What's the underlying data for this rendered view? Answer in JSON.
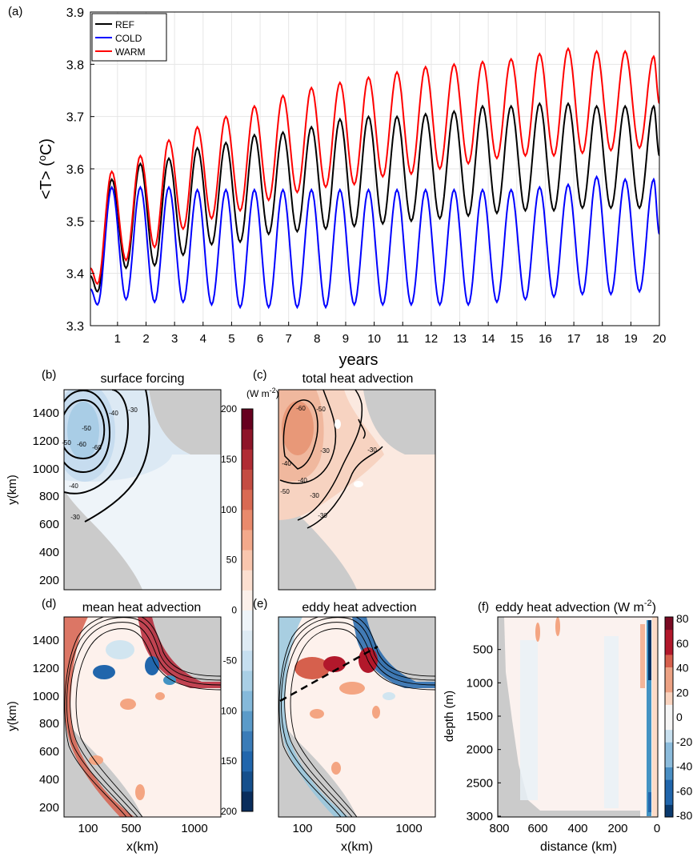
{
  "chart_data": [
    {
      "type": "line",
      "panel_label": "(a)",
      "xlabel": "years",
      "ylabel_main": "<T> (",
      "ylabel_sup": "o",
      "ylabel_tail": "C)",
      "xlim": [
        0.05,
        20
      ],
      "ylim": [
        3.3,
        3.9
      ],
      "xticks": [
        "1",
        "2",
        "3",
        "4",
        "5",
        "6",
        "7",
        "8",
        "9",
        "10",
        "11",
        "12",
        "13",
        "14",
        "15",
        "16",
        "17",
        "18",
        "19",
        "20"
      ],
      "yticks": [
        "3.3",
        "3.4",
        "3.5",
        "3.6",
        "3.7",
        "3.8",
        "3.9"
      ],
      "grid": true,
      "legend_position": "top-left",
      "series": [
        {
          "name": "REF",
          "color": "#000000",
          "peaks": [
            [
              0.8,
              3.58
            ],
            [
              1.8,
              3.61
            ],
            [
              2.8,
              3.62
            ],
            [
              3.8,
              3.64
            ],
            [
              4.8,
              3.65
            ],
            [
              5.8,
              3.665
            ],
            [
              6.8,
              3.67
            ],
            [
              7.8,
              3.68
            ],
            [
              8.8,
              3.695
            ],
            [
              9.8,
              3.7
            ],
            [
              10.8,
              3.7
            ],
            [
              11.8,
              3.705
            ],
            [
              12.8,
              3.71
            ],
            [
              13.8,
              3.72
            ],
            [
              14.8,
              3.72
            ],
            [
              15.8,
              3.725
            ],
            [
              16.8,
              3.725
            ],
            [
              17.8,
              3.72
            ],
            [
              18.8,
              3.72
            ],
            [
              19.8,
              3.72
            ]
          ],
          "troughs": [
            [
              0.3,
              3.365
            ],
            [
              1.3,
              3.41
            ],
            [
              2.3,
              3.415
            ],
            [
              3.3,
              3.435
            ],
            [
              4.3,
              3.455
            ],
            [
              5.3,
              3.46
            ],
            [
              6.3,
              3.475
            ],
            [
              7.3,
              3.48
            ],
            [
              8.3,
              3.485
            ],
            [
              9.3,
              3.49
            ],
            [
              10.3,
              3.495
            ],
            [
              11.3,
              3.5
            ],
            [
              12.3,
              3.505
            ],
            [
              13.3,
              3.51
            ],
            [
              14.3,
              3.515
            ],
            [
              15.3,
              3.52
            ],
            [
              16.3,
              3.52
            ],
            [
              17.3,
              3.525
            ],
            [
              18.3,
              3.525
            ],
            [
              19.3,
              3.525
            ]
          ],
          "end": [
            20,
            3.625
          ]
        },
        {
          "name": "COLD",
          "color": "#0000ff",
          "peaks": [
            [
              0.8,
              3.565
            ],
            [
              1.8,
              3.565
            ],
            [
              2.8,
              3.565
            ],
            [
              3.8,
              3.56
            ],
            [
              4.8,
              3.56
            ],
            [
              5.8,
              3.56
            ],
            [
              6.8,
              3.56
            ],
            [
              7.8,
              3.56
            ],
            [
              8.8,
              3.56
            ],
            [
              9.8,
              3.56
            ],
            [
              10.8,
              3.56
            ],
            [
              11.8,
              3.56
            ],
            [
              12.8,
              3.56
            ],
            [
              13.8,
              3.56
            ],
            [
              14.8,
              3.56
            ],
            [
              15.8,
              3.565
            ],
            [
              16.8,
              3.57
            ],
            [
              17.8,
              3.585
            ],
            [
              18.8,
              3.58
            ],
            [
              19.8,
              3.58
            ]
          ],
          "troughs": [
            [
              0.3,
              3.34
            ],
            [
              1.3,
              3.35
            ],
            [
              2.3,
              3.345
            ],
            [
              3.3,
              3.345
            ],
            [
              4.3,
              3.34
            ],
            [
              5.3,
              3.335
            ],
            [
              6.3,
              3.335
            ],
            [
              7.3,
              3.335
            ],
            [
              8.3,
              3.335
            ],
            [
              9.3,
              3.34
            ],
            [
              10.3,
              3.34
            ],
            [
              11.3,
              3.34
            ],
            [
              12.3,
              3.34
            ],
            [
              13.3,
              3.34
            ],
            [
              14.3,
              3.345
            ],
            [
              15.3,
              3.35
            ],
            [
              16.3,
              3.355
            ],
            [
              17.3,
              3.36
            ],
            [
              18.3,
              3.36
            ],
            [
              19.3,
              3.365
            ]
          ],
          "end": [
            20,
            3.475
          ]
        },
        {
          "name": "WARM",
          "color": "#ff0000",
          "peaks": [
            [
              0.8,
              3.595
            ],
            [
              1.8,
              3.625
            ],
            [
              2.8,
              3.655
            ],
            [
              3.8,
              3.68
            ],
            [
              4.8,
              3.7
            ],
            [
              5.8,
              3.72
            ],
            [
              6.8,
              3.74
            ],
            [
              7.8,
              3.755
            ],
            [
              8.8,
              3.765
            ],
            [
              9.8,
              3.775
            ],
            [
              10.8,
              3.785
            ],
            [
              11.8,
              3.795
            ],
            [
              12.8,
              3.8
            ],
            [
              13.8,
              3.805
            ],
            [
              14.8,
              3.81
            ],
            [
              15.8,
              3.82
            ],
            [
              16.8,
              3.83
            ],
            [
              17.8,
              3.825
            ],
            [
              18.8,
              3.825
            ],
            [
              19.8,
              3.815
            ]
          ],
          "troughs": [
            [
              0.3,
              3.38
            ],
            [
              1.3,
              3.425
            ],
            [
              2.3,
              3.45
            ],
            [
              3.3,
              3.485
            ],
            [
              4.3,
              3.505
            ],
            [
              5.3,
              3.52
            ],
            [
              6.3,
              3.54
            ],
            [
              7.3,
              3.555
            ],
            [
              8.3,
              3.565
            ],
            [
              9.3,
              3.57
            ],
            [
              10.3,
              3.585
            ],
            [
              11.3,
              3.59
            ],
            [
              12.3,
              3.6
            ],
            [
              13.3,
              3.61
            ],
            [
              14.3,
              3.62
            ],
            [
              15.3,
              3.625
            ],
            [
              16.3,
              3.625
            ],
            [
              17.3,
              3.63
            ],
            [
              18.3,
              3.635
            ],
            [
              19.3,
              3.64
            ]
          ],
          "end": [
            20,
            3.725
          ]
        }
      ]
    },
    {
      "type": "heatmap",
      "panel_label": "(b)",
      "title": "surface forcing",
      "ylabel": "y(km)",
      "yticks": [
        "1400",
        "1200",
        "1000",
        "800",
        "600",
        "400",
        "200"
      ],
      "contour_labels": [
        "-30",
        "-40",
        "-50",
        "-60",
        "-60",
        "-50",
        "-40",
        "-30"
      ]
    },
    {
      "type": "heatmap",
      "panel_label": "(c)",
      "title": "total heat advection",
      "contour_labels": [
        "-60",
        "-50",
        "-40",
        "-30",
        "-50",
        "-30",
        "-40",
        "-30",
        "-30"
      ]
    },
    {
      "type": "heatmap",
      "panel_label": "(d)",
      "title": "mean heat advection",
      "ylabel": "y(km)",
      "xlabel": "x(km)",
      "xticks": [
        "100",
        "500",
        "1000"
      ],
      "yticks": [
        "1400",
        "1200",
        "1000",
        "800",
        "600",
        "400",
        "200"
      ]
    },
    {
      "type": "heatmap",
      "panel_label": "(e)",
      "title": "eddy heat advection",
      "xlabel": "x(km)",
      "xticks": [
        "100",
        "500",
        "1000"
      ]
    },
    {
      "type": "heatmap",
      "panel_label": "(f)",
      "title_main": "eddy heat advection (W m",
      "title_sup": "-2",
      "title_tail": ")",
      "xlabel": "distance (km)",
      "ylabel": "depth (m)",
      "xticks": [
        "800",
        "600",
        "400",
        "200",
        "0"
      ],
      "yticks": [
        "500",
        "1000",
        "1500",
        "2000",
        "2500",
        "3000"
      ],
      "colorbar_ticks": [
        "80",
        "60",
        "40",
        "20",
        "0",
        "-20",
        "-40",
        "-60",
        "-80"
      ]
    },
    {
      "type": "colorbar",
      "unit_main": "(W m",
      "unit_sup": "-2",
      "unit_tail": ")",
      "range": [
        -200,
        200
      ],
      "ticks": [
        "200",
        "150",
        "100",
        "50",
        "0",
        "-50",
        "-100",
        "-150",
        "-200"
      ]
    }
  ],
  "colors": {
    "land": "#cbcbcb",
    "grid": "#e6e6e6"
  }
}
